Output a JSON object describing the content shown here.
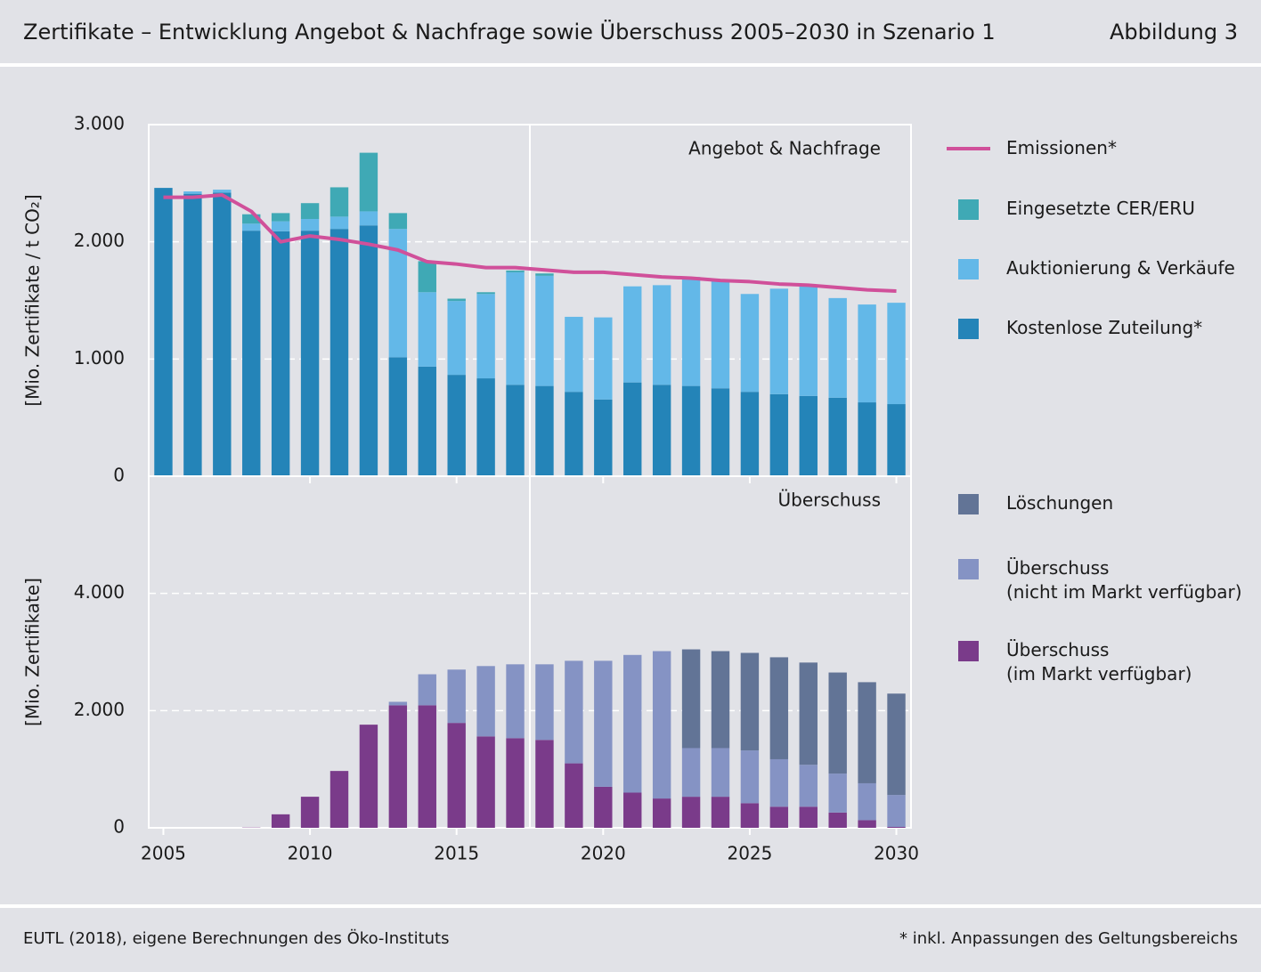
{
  "header": {
    "title": "Zertifikate – Entwicklung Angebot & Nachfrage sowie Überschuss 2005–2030 in Szenario 1",
    "figure": "Abbildung 3"
  },
  "footer": {
    "source": "EUTL (2018), eigene Berechnungen des Öko-Instituts",
    "note": "* inkl. Anpassungen des Geltungsbereichs"
  },
  "chart_data": [
    {
      "type": "bar",
      "stacked": true,
      "title": "Angebot & Nachfrage",
      "y_label": "[Mio. Zertifikate / t CO₂]",
      "x": [
        2005,
        2006,
        2007,
        2008,
        2009,
        2010,
        2011,
        2012,
        2013,
        2014,
        2015,
        2016,
        2017,
        2018,
        2019,
        2020,
        2021,
        2022,
        2023,
        2024,
        2025,
        2026,
        2027,
        2028,
        2029,
        2030
      ],
      "xlim": [
        2004.5,
        2030.5
      ],
      "xticks": [
        2010,
        2015,
        2020,
        2025,
        2030
      ],
      "divider_x": 2017.5,
      "ylim": [
        0,
        3000
      ],
      "yticks": [
        0,
        {
          "value": 1000,
          "label": "1.000"
        },
        {
          "value": 2000,
          "label": "2.000"
        },
        {
          "value": 3000,
          "label": "3.000"
        }
      ],
      "grid": true,
      "series": [
        {
          "name": "Kostenlose Zuteilung*",
          "color": "#2484b8",
          "values": [
            2460,
            2410,
            2420,
            2095,
            2090,
            2095,
            2110,
            2140,
            1015,
            935,
            865,
            835,
            780,
            770,
            720,
            655,
            800,
            780,
            770,
            750,
            720,
            700,
            685,
            670,
            630,
            615
          ]
        },
        {
          "name": "Auktionierung & Verkäufe",
          "color": "#63b8e8",
          "values": [
            0,
            20,
            25,
            60,
            85,
            100,
            105,
            120,
            1095,
            635,
            630,
            720,
            960,
            940,
            640,
            700,
            820,
            850,
            930,
            920,
            835,
            900,
            935,
            850,
            835,
            865
          ]
        },
        {
          "name": "Eingesetzte CER/ERU",
          "color": "#3fa9b5",
          "values": [
            0,
            0,
            0,
            80,
            70,
            135,
            250,
            500,
            135,
            265,
            20,
            15,
            15,
            20,
            0,
            0,
            0,
            0,
            0,
            0,
            0,
            0,
            0,
            0,
            0,
            0
          ]
        },
        {
          "name": "Emissionen*",
          "type": "line",
          "color": "#d0509a",
          "values": [
            2380,
            2380,
            2400,
            2260,
            2000,
            2050,
            2020,
            1980,
            1930,
            1830,
            1810,
            1780,
            1780,
            1760,
            1740,
            1740,
            1720,
            1700,
            1690,
            1670,
            1660,
            1640,
            1630,
            1610,
            1590,
            1580
          ]
        }
      ]
    },
    {
      "type": "bar",
      "stacked": true,
      "title": "Überschuss",
      "y_label": "[Mio. Zertifikate]",
      "x": [
        2005,
        2006,
        2007,
        2008,
        2009,
        2010,
        2011,
        2012,
        2013,
        2014,
        2015,
        2016,
        2017,
        2018,
        2019,
        2020,
        2021,
        2022,
        2023,
        2024,
        2025,
        2026,
        2027,
        2028,
        2029,
        2030
      ],
      "xlim": [
        2004.5,
        2030.5
      ],
      "xticks": [
        2005,
        2010,
        2015,
        2020,
        2025,
        2030
      ],
      "divider_x": 2017.5,
      "ylim": [
        0,
        6000
      ],
      "yticks": [
        0,
        {
          "value": 2000,
          "label": "2.000"
        },
        {
          "value": 4000,
          "label": "4.000"
        }
      ],
      "grid": true,
      "series": [
        {
          "name": "Überschuss\n(im Markt verfügbar)",
          "color": "#7a3b8a",
          "values": [
            0,
            0,
            0,
            5,
            230,
            530,
            970,
            1760,
            2090,
            2090,
            1790,
            1560,
            1530,
            1500,
            1100,
            700,
            600,
            500,
            530,
            530,
            420,
            360,
            360,
            260,
            130,
            15
          ]
        },
        {
          "name": "Überschuss\n(nicht im Markt verfügbar)",
          "color": "#8593c4",
          "values": [
            0,
            0,
            0,
            0,
            0,
            0,
            0,
            0,
            60,
            530,
            910,
            1200,
            1260,
            1290,
            1750,
            2150,
            2350,
            2515,
            830,
            830,
            900,
            810,
            715,
            665,
            630,
            545
          ]
        },
        {
          "name": "Löschungen",
          "color": "#627496",
          "values": [
            0,
            0,
            0,
            0,
            0,
            0,
            0,
            0,
            0,
            0,
            0,
            0,
            0,
            0,
            0,
            0,
            0,
            0,
            1685,
            1655,
            1665,
            1740,
            1745,
            1725,
            1725,
            1730
          ]
        }
      ]
    }
  ]
}
